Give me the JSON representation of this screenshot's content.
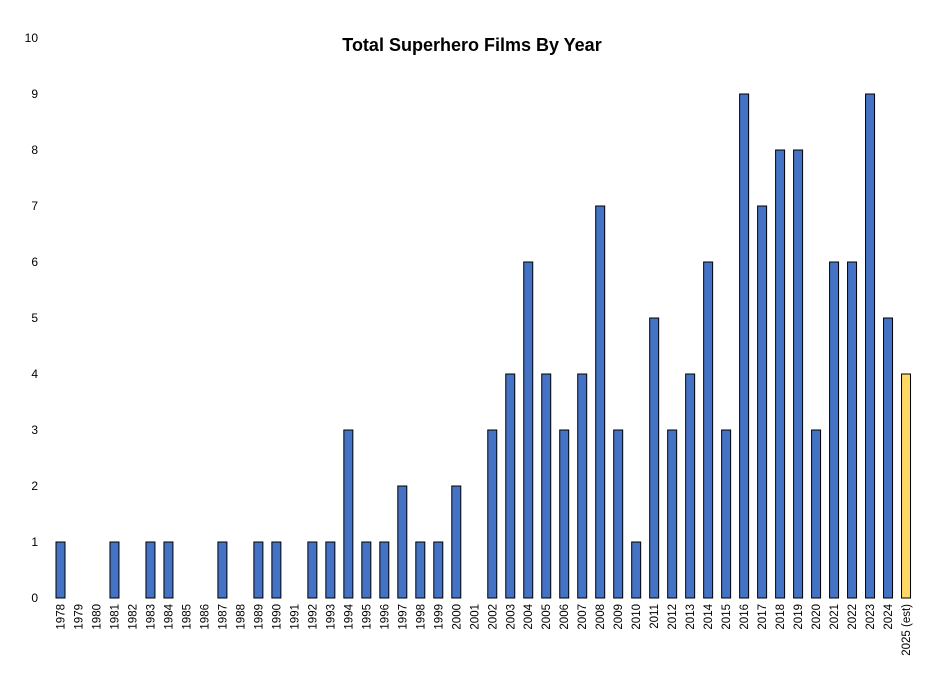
{
  "chart_data": {
    "type": "bar",
    "title": "Total Superhero Films By Year",
    "xlabel": "",
    "ylabel": "",
    "ylim": [
      0,
      10
    ],
    "yticks": [
      "0",
      "1",
      "2",
      "3",
      "4",
      "5",
      "6",
      "7",
      "8",
      "9",
      "10"
    ],
    "grid": false,
    "categories": [
      "1978",
      "1979",
      "1980",
      "1981",
      "1982",
      "1983",
      "1984",
      "1985",
      "1986",
      "1987",
      "1988",
      "1989",
      "1990",
      "1991",
      "1992",
      "1993",
      "1994",
      "1995",
      "1996",
      "1997",
      "1998",
      "1999",
      "2000",
      "2001",
      "2002",
      "2003",
      "2004",
      "2005",
      "2006",
      "2007",
      "2008",
      "2009",
      "2010",
      "2011",
      "2012",
      "2013",
      "2014",
      "2015",
      "2016",
      "2017",
      "2018",
      "2019",
      "2020",
      "2021",
      "2022",
      "2023",
      "2024",
      "2025 (est)"
    ],
    "values": [
      1,
      0,
      0,
      1,
      0,
      1,
      1,
      0,
      0,
      1,
      0,
      1,
      1,
      0,
      1,
      1,
      3,
      1,
      1,
      2,
      1,
      1,
      2,
      0,
      3,
      4,
      6,
      4,
      3,
      4,
      7,
      3,
      1,
      5,
      3,
      4,
      6,
      3,
      9,
      7,
      8,
      8,
      3,
      6,
      6,
      9,
      5,
      4
    ],
    "colors": {
      "bar": "#4472C4",
      "bar_estimate": "#FFD966",
      "bar_outline": "#000000"
    },
    "estimate_index": 47
  }
}
